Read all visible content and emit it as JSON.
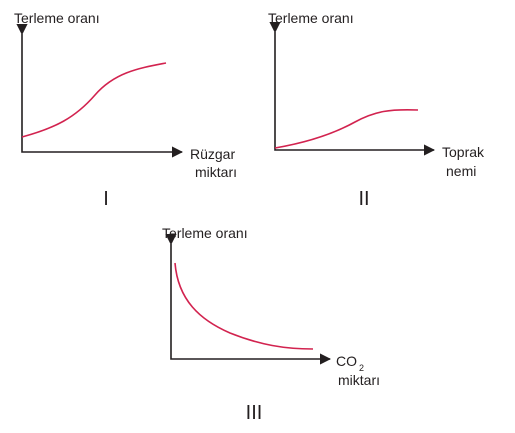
{
  "graphs": [
    {
      "y_axis_label": "Terleme oranı",
      "x_axis_label": [
        "Rüzgar",
        "miktarı"
      ],
      "numeral": "I"
    },
    {
      "y_axis_label": "Terleme oranı",
      "x_axis_label": [
        "Toprak",
        "nemi"
      ],
      "numeral": "II"
    },
    {
      "y_axis_label": "Terleme oranı",
      "x_axis_label": [
        "CO",
        "miktarı"
      ],
      "x_axis_label_subscript": "2",
      "numeral": "III"
    }
  ]
}
